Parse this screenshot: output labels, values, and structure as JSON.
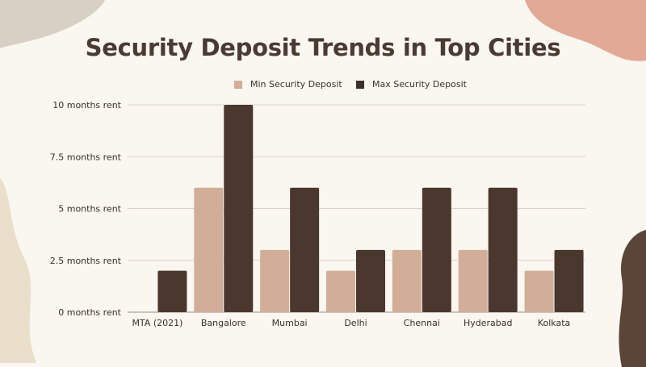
{
  "chart_data": {
    "type": "bar",
    "title": "Security Deposit Trends in Top Cities",
    "categories": [
      "MTA (2021)",
      "Bangalore",
      "Mumbai",
      "Delhi",
      "Chennai",
      "Hyderabad",
      "Kolkata"
    ],
    "series": [
      {
        "name": "Min Security Deposit",
        "color": "#d2ae98",
        "values": [
          0,
          6,
          3,
          2,
          3,
          3,
          2
        ]
      },
      {
        "name": "Max Security Deposit",
        "color": "#4a372d",
        "values": [
          2,
          10,
          6,
          3,
          6,
          6,
          3
        ]
      }
    ],
    "yticks": [
      {
        "value": 0,
        "label": "0 months rent"
      },
      {
        "value": 2.5,
        "label": "2.5 months rent"
      },
      {
        "value": 5,
        "label": "5 months rent"
      },
      {
        "value": 7.5,
        "label": "7.5 months rent"
      },
      {
        "value": 10,
        "label": "10 months rent"
      }
    ],
    "ylim": [
      0,
      10
    ],
    "grid": true,
    "legend": "top"
  }
}
